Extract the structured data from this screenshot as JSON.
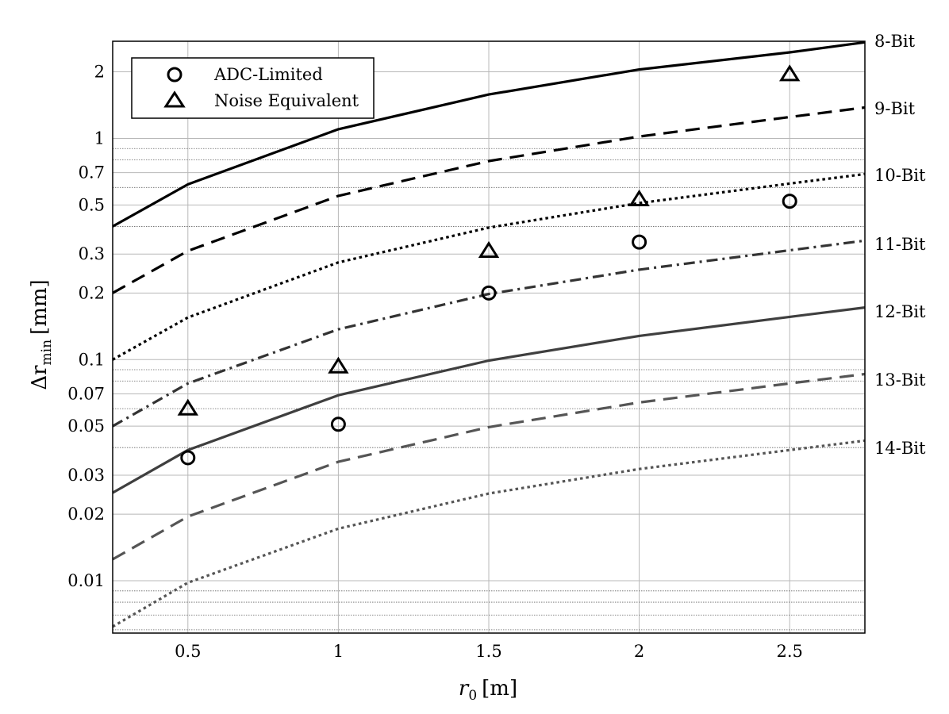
{
  "chart_data": {
    "type": "line",
    "xlabel": "r",
    "xlabel_sub": "0",
    "xlabel_unit": "[m]",
    "ylabel": "Δr",
    "ylabel_sub": "min",
    "ylabel_unit": "[mm]",
    "xlim": [
      0.25,
      2.75
    ],
    "ylim": [
      0.0058,
      2.75
    ],
    "yscale": "log",
    "grid": true,
    "xticks": [
      0.5,
      1,
      1.5,
      2,
      2.5
    ],
    "xtick_labels": [
      "0.5",
      "1",
      "1.5",
      "2",
      "2.5"
    ],
    "yticks": [
      0.01,
      0.02,
      0.03,
      0.05,
      0.07,
      0.1,
      0.2,
      0.3,
      0.5,
      0.7,
      1,
      2
    ],
    "ytick_labels": [
      "0.01",
      "0.02",
      "0.03",
      "0.05",
      "0.07",
      "0.1",
      "0.2",
      "0.3",
      "0.5",
      "0.7",
      "1",
      "2"
    ],
    "legend_position": "top-left",
    "series": [
      {
        "label": "8-Bit",
        "style": "solid",
        "color": "#000000",
        "x": [
          0.25,
          0.5,
          1,
          1.5,
          2,
          2.5,
          2.75
        ],
        "values": [
          0.4,
          0.62,
          1.1,
          1.58,
          2.05,
          2.45,
          2.72
        ]
      },
      {
        "label": "9-Bit",
        "style": "dashed",
        "color": "#000000",
        "x": [
          0.25,
          0.5,
          1,
          1.5,
          2,
          2.5,
          2.75
        ],
        "values": [
          0.2,
          0.31,
          0.55,
          0.79,
          1.02,
          1.25,
          1.38
        ]
      },
      {
        "label": "10-Bit",
        "style": "dotted",
        "color": "#000000",
        "x": [
          0.25,
          0.5,
          1,
          1.5,
          2,
          2.5,
          2.75
        ],
        "values": [
          0.1,
          0.155,
          0.275,
          0.395,
          0.51,
          0.625,
          0.69
        ]
      },
      {
        "label": "11-Bit",
        "style": "dashdot",
        "color": "#333333",
        "x": [
          0.25,
          0.5,
          1,
          1.5,
          2,
          2.5,
          2.75
        ],
        "values": [
          0.05,
          0.078,
          0.137,
          0.198,
          0.255,
          0.312,
          0.345
        ]
      },
      {
        "label": "12-Bit",
        "style": "solid",
        "color": "#3f3f3f",
        "x": [
          0.25,
          0.5,
          1,
          1.5,
          2,
          2.5,
          2.75
        ],
        "values": [
          0.025,
          0.039,
          0.069,
          0.099,
          0.128,
          0.156,
          0.172
        ]
      },
      {
        "label": "13-Bit",
        "style": "dashed",
        "color": "#555555",
        "x": [
          0.25,
          0.5,
          1,
          1.5,
          2,
          2.5,
          2.75
        ],
        "values": [
          0.0125,
          0.0195,
          0.0345,
          0.0495,
          0.064,
          0.078,
          0.086
        ]
      },
      {
        "label": "14-Bit",
        "style": "dotted",
        "color": "#555555",
        "x": [
          0.25,
          0.5,
          1,
          1.5,
          2,
          2.5,
          2.75
        ],
        "values": [
          0.0062,
          0.0098,
          0.0172,
          0.0248,
          0.032,
          0.039,
          0.043
        ]
      }
    ],
    "markers": [
      {
        "name": "ADC-Limited",
        "shape": "circle",
        "x": [
          0.5,
          1,
          1.5,
          2,
          2.5
        ],
        "values": [
          0.036,
          0.051,
          0.2,
          0.34,
          0.52
        ]
      },
      {
        "name": "Noise Equivalent",
        "shape": "triangle",
        "x": [
          0.5,
          1,
          1.5,
          2,
          2.5
        ],
        "values": [
          0.06,
          0.093,
          0.31,
          0.53,
          1.95
        ]
      }
    ]
  }
}
